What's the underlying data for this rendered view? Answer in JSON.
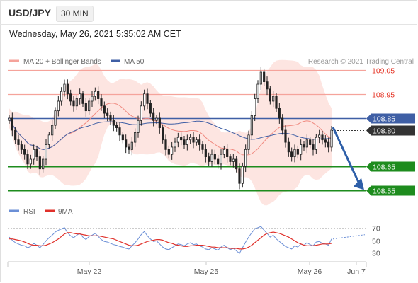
{
  "header": {
    "symbol": "USD/JPY",
    "timeframe": "30 MIN",
    "datetime": "Wednesday, May 26, 2021 5:35:02 AM CET"
  },
  "legend": {
    "ma20_bb": "MA 20 + Bollinger Bands",
    "ma50": "MA 50",
    "credit": "Research © 2021 Trading Central",
    "rsi": "RSI",
    "rsi_ma": "9MA"
  },
  "colors": {
    "bollinger_fill": "#fde0dc",
    "ma20": "#f08a80",
    "ma50": "#3f5fa5",
    "resistance": "#f5a39b",
    "support": "#1e8c1e",
    "pivot": "#3f5fa5",
    "current": "#333333",
    "candle": "#222222",
    "arrow": "#2e5fa8",
    "resistance_text": "#e53526",
    "rsi": "#6b8fd6",
    "rsi_ma": "#e0302a"
  },
  "chart_data": [
    {
      "type": "candlestick",
      "title": "USD/JPY",
      "timeframe": "30 MIN",
      "x_ticks": [
        "May 22",
        "May 25",
        "May 26",
        "Jun 7"
      ],
      "ylim": [
        108.49,
        109.11
      ],
      "levels": [
        {
          "value": 109.05,
          "label": "109.05",
          "kind": "resistance"
        },
        {
          "value": 108.95,
          "label": "108.95",
          "kind": "resistance"
        },
        {
          "value": 108.85,
          "label": "108.85",
          "kind": "pivot"
        },
        {
          "value": 108.8,
          "label": "108.80",
          "kind": "current"
        },
        {
          "value": 108.65,
          "label": "108.65",
          "kind": "support"
        },
        {
          "value": 108.55,
          "label": "108.55",
          "kind": "support"
        }
      ],
      "closes": [
        108.85,
        108.8,
        108.76,
        108.74,
        108.72,
        108.7,
        108.66,
        108.68,
        108.72,
        108.69,
        108.64,
        108.68,
        108.74,
        108.78,
        108.82,
        108.88,
        108.92,
        108.96,
        108.99,
        108.95,
        108.92,
        108.9,
        108.93,
        108.95,
        108.91,
        108.88,
        108.92,
        108.94,
        108.96,
        108.93,
        108.9,
        108.87,
        108.86,
        108.84,
        108.82,
        108.81,
        108.78,
        108.76,
        108.73,
        108.72,
        108.75,
        108.79,
        108.84,
        108.9,
        108.95,
        108.91,
        108.87,
        108.84,
        108.85,
        108.81,
        108.76,
        108.72,
        108.7,
        108.73,
        108.75,
        108.77,
        108.76,
        108.74,
        108.76,
        108.77,
        108.75,
        108.76,
        108.74,
        108.72,
        108.69,
        108.67,
        108.7,
        108.68,
        108.66,
        108.7,
        108.72,
        108.69,
        108.67,
        108.68,
        108.64,
        108.58,
        108.65,
        108.72,
        108.78,
        108.86,
        108.93,
        108.99,
        109.04,
        109.0,
        108.97,
        108.92,
        108.94,
        108.89,
        108.85,
        108.8,
        108.75,
        108.71,
        108.69,
        108.72,
        108.7,
        108.74,
        108.73,
        108.76,
        108.74,
        108.72,
        108.77,
        108.78,
        108.76,
        108.75,
        108.73,
        108.8
      ],
      "ylabel": "",
      "xlabel": ""
    },
    {
      "type": "line",
      "title": "",
      "series": [
        {
          "name": "RSI",
          "values": [
            55,
            50,
            46,
            44,
            42,
            41,
            38,
            40,
            45,
            42,
            38,
            43,
            49,
            54,
            58,
            63,
            66,
            68,
            70,
            62,
            57,
            54,
            58,
            61,
            55,
            51,
            56,
            58,
            61,
            56,
            51,
            48,
            47,
            45,
            43,
            42,
            40,
            39,
            37,
            36,
            41,
            46,
            52,
            59,
            64,
            57,
            52,
            48,
            49,
            44,
            39,
            36,
            35,
            38,
            41,
            44,
            43,
            41,
            44,
            46,
            43,
            44,
            41,
            39,
            36,
            35,
            38,
            36,
            34,
            39,
            42,
            38,
            35,
            37,
            33,
            29,
            38,
            47,
            55,
            62,
            68,
            70,
            72,
            66,
            61,
            55,
            58,
            52,
            48,
            44,
            40,
            38,
            36,
            41,
            39,
            44,
            42,
            46,
            43,
            41,
            47,
            48,
            45,
            44,
            42,
            52
          ]
        },
        {
          "name": "9MA",
          "values": [
            52,
            52,
            51,
            50,
            49,
            47,
            45,
            43,
            42,
            42,
            41,
            41,
            42,
            44,
            46,
            49,
            52,
            56,
            60,
            62,
            62,
            61,
            60,
            60,
            59,
            58,
            57,
            57,
            57,
            57,
            56,
            55,
            54,
            53,
            52,
            50,
            48,
            46,
            44,
            42,
            41,
            41,
            42,
            44,
            46,
            48,
            49,
            50,
            51,
            51,
            50,
            48,
            46,
            45,
            43,
            42,
            41,
            40,
            40,
            41,
            41,
            42,
            42,
            42,
            41,
            40,
            39,
            39,
            38,
            38,
            38,
            38,
            37,
            37,
            37,
            36,
            36,
            37,
            39,
            42,
            46,
            50,
            54,
            58,
            61,
            62,
            63,
            62,
            61,
            59,
            57,
            55,
            52,
            49,
            46,
            44,
            42,
            41,
            41,
            41,
            42,
            43,
            44,
            44,
            44,
            45
          ]
        }
      ],
      "y_ticks": [
        70,
        50,
        30
      ],
      "ylim": [
        20,
        80
      ],
      "xlabel": "",
      "ylabel": ""
    }
  ]
}
